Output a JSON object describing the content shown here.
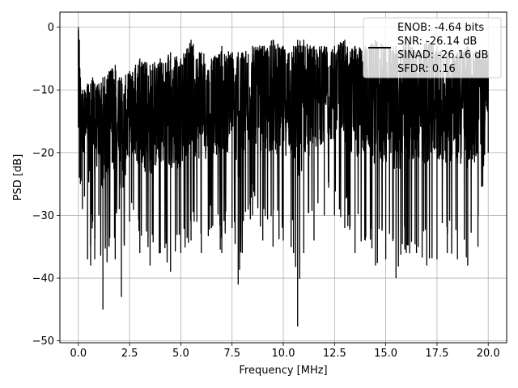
{
  "chart_data": {
    "type": "line",
    "title": "",
    "xlabel": "Frequency [MHz]",
    "ylabel": "PSD [dB]",
    "xlim": [
      -0.9,
      20.9
    ],
    "ylim": [
      -50.3,
      2.4
    ],
    "x_ticks": [
      0.0,
      2.5,
      5.0,
      7.5,
      10.0,
      12.5,
      15.0,
      17.5,
      20.0
    ],
    "x_tick_labels": [
      "0.0",
      "2.5",
      "5.0",
      "7.5",
      "10.0",
      "12.5",
      "15.0",
      "17.5",
      "20.0"
    ],
    "y_ticks": [
      0,
      -10,
      -20,
      -30,
      -40,
      -50
    ],
    "y_tick_labels": [
      "0",
      "−10",
      "−20",
      "−30",
      "−40",
      "−50"
    ],
    "grid": true,
    "legend_position": "top-right",
    "legend_lines": [
      "ENOB: -4.64 bits",
      "SNR: -26.14 dB",
      "SINAD: -26.16 dB",
      "SFDR: 0.16"
    ],
    "series": [
      {
        "color": "#000000",
        "envelope_note": "dense noise spectrum, 0 to 20 MHz",
        "x": [
          0,
          0.05,
          0.1,
          0.2,
          0.3,
          0.45,
          0.6,
          0.7,
          0.8,
          1.0,
          1.2,
          1.5,
          1.8,
          2.0,
          2.1,
          2.5,
          3.0,
          3.5,
          4.0,
          4.5,
          5.0,
          5.5,
          6.0,
          6.5,
          7.0,
          7.5,
          7.8,
          8.0,
          8.5,
          9.0,
          9.5,
          10.0,
          10.5,
          10.7,
          11.0,
          11.5,
          12.0,
          12.5,
          13.0,
          13.5,
          14.0,
          14.5,
          15.0,
          15.5,
          16.0,
          16.5,
          17.0,
          17.5,
          18.0,
          18.5,
          19.0,
          19.5,
          20.0
        ],
        "max": [
          0,
          -2,
          -8,
          -10,
          -10,
          -9,
          -9,
          -8,
          -9,
          -9,
          -8,
          -7,
          -6,
          -8,
          -8,
          -7,
          -5,
          -6,
          -5,
          -4,
          -5,
          -2,
          -4,
          -5,
          -3,
          -4,
          -4,
          -4,
          -3,
          -3,
          -2,
          -3,
          -3,
          -2,
          -2,
          -3,
          -3,
          -3,
          -2,
          -3,
          -3,
          -2,
          -3,
          -3,
          -2,
          -4,
          -2,
          -3,
          -4,
          -4,
          -3,
          -4,
          -4
        ],
        "min": [
          -16,
          -24,
          -25,
          -29,
          -27,
          -37,
          -38,
          -31,
          -37,
          -30,
          -45,
          -35,
          -37,
          -29,
          -43,
          -31,
          -36,
          -38,
          -36,
          -39,
          -36,
          -34,
          -36,
          -32,
          -36,
          -32,
          -41,
          -36,
          -30,
          -34,
          -35,
          -34,
          -36,
          -47.7,
          -36,
          -34,
          -30,
          -30,
          -32,
          -36,
          -34,
          -38,
          -37,
          -40,
          -36,
          -36,
          -38,
          -37,
          -36,
          -37,
          -38,
          -35,
          -20
        ]
      }
    ]
  }
}
